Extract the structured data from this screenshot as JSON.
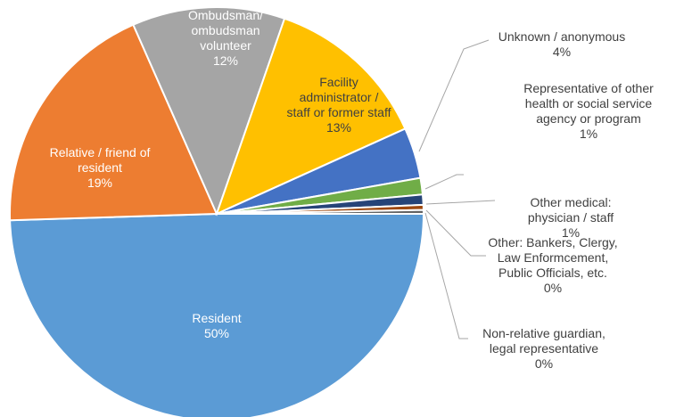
{
  "chart_data": {
    "type": "pie",
    "categories": [
      "Resident",
      "Relative / friend of\nresident",
      "Ombudsman/\nombudsman\nvolunteer",
      "Facility\nadministrator /\nstaff or former staff",
      "Unknown / anonymous",
      "Representative of other\nhealth or social service\nagency or program",
      "Other medical:\nphysician / staff",
      "Other:  Bankers, Clergy,\nLaw Enformcement,\nPublic Officials, etc.",
      "Non-relative guardian,\nlegal representative"
    ],
    "values": [
      49.8,
      19,
      12,
      13,
      4,
      1.3,
      0.8,
      0.4,
      0.3
    ],
    "value_labels": [
      "50%",
      "19%",
      "12%",
      "13%",
      "4%",
      "1%",
      "1%",
      "0%",
      "0%"
    ],
    "colors": [
      "#5b9bd5",
      "#ed7d31",
      "#a5a5a5",
      "#ffc000",
      "#4472c4",
      "#70ad47",
      "#264478",
      "#9e480e",
      "#636363"
    ]
  }
}
